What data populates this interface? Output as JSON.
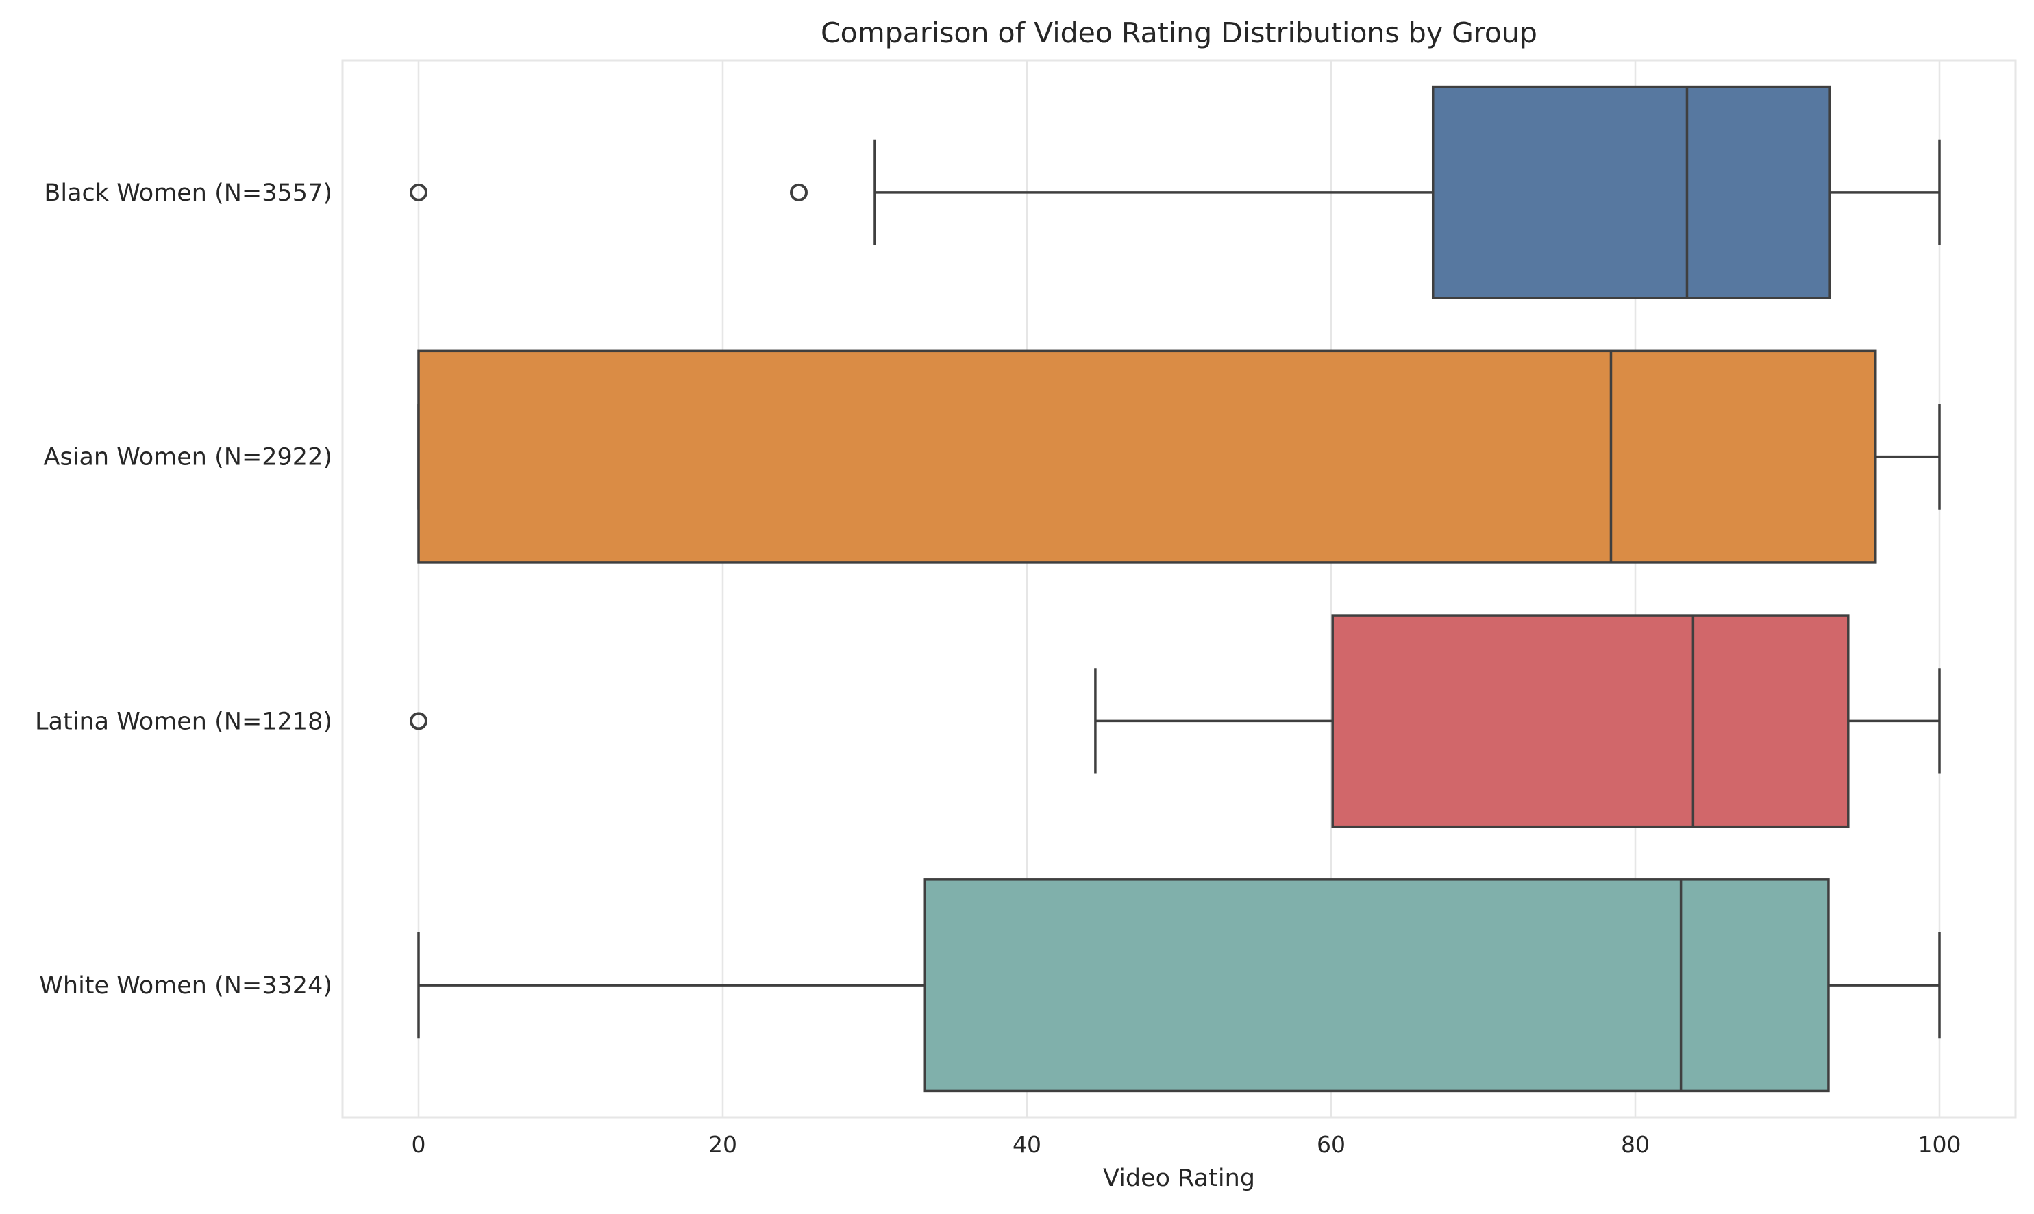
{
  "chart_data": {
    "type": "box",
    "orientation": "horizontal",
    "title": "Comparison of Video Rating Distributions by Group",
    "xlabel": "Video Rating",
    "ylabel": "",
    "xlim": [
      -5,
      105
    ],
    "xticks": [
      0,
      20,
      40,
      60,
      80,
      100
    ],
    "grid": true,
    "legend": "none",
    "groups": [
      {
        "label": "Black Women (N=3557)",
        "color": "#5778a0",
        "whisker_low": 30,
        "q1": 66.7,
        "median": 83.4,
        "q3": 92.8,
        "whisker_high": 100,
        "outliers": [
          0,
          25
        ]
      },
      {
        "label": "Asian Women (N=2922)",
        "color": "#da8c45",
        "whisker_low": 0,
        "q1": 0,
        "median": 78.4,
        "q3": 95.8,
        "whisker_high": 100,
        "outliers": []
      },
      {
        "label": "Latina Women (N=1218)",
        "color": "#d1676a",
        "whisker_low": 44.5,
        "q1": 60.1,
        "median": 83.8,
        "q3": 94.0,
        "whisker_high": 100,
        "outliers": [
          0
        ]
      },
      {
        "label": "White Women (N=3324)",
        "color": "#80b0ab",
        "whisker_low": 0,
        "q1": 33.3,
        "median": 83.0,
        "q3": 92.7,
        "whisker_high": 100,
        "outliers": []
      }
    ]
  }
}
